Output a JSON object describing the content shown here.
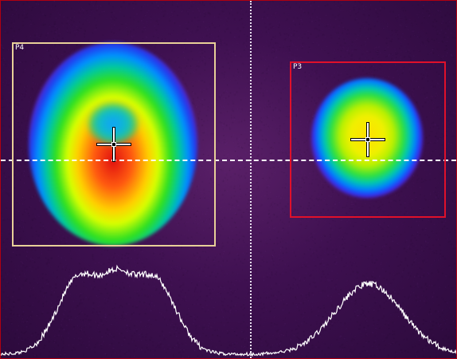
{
  "roi_p4": {
    "label": "P4",
    "color": "#e8d098"
  },
  "roi_p3": {
    "label": "P3",
    "color": "#e0102a"
  },
  "profile": {
    "color": "#ffffff"
  },
  "background": {
    "color": "#3e1050"
  }
}
